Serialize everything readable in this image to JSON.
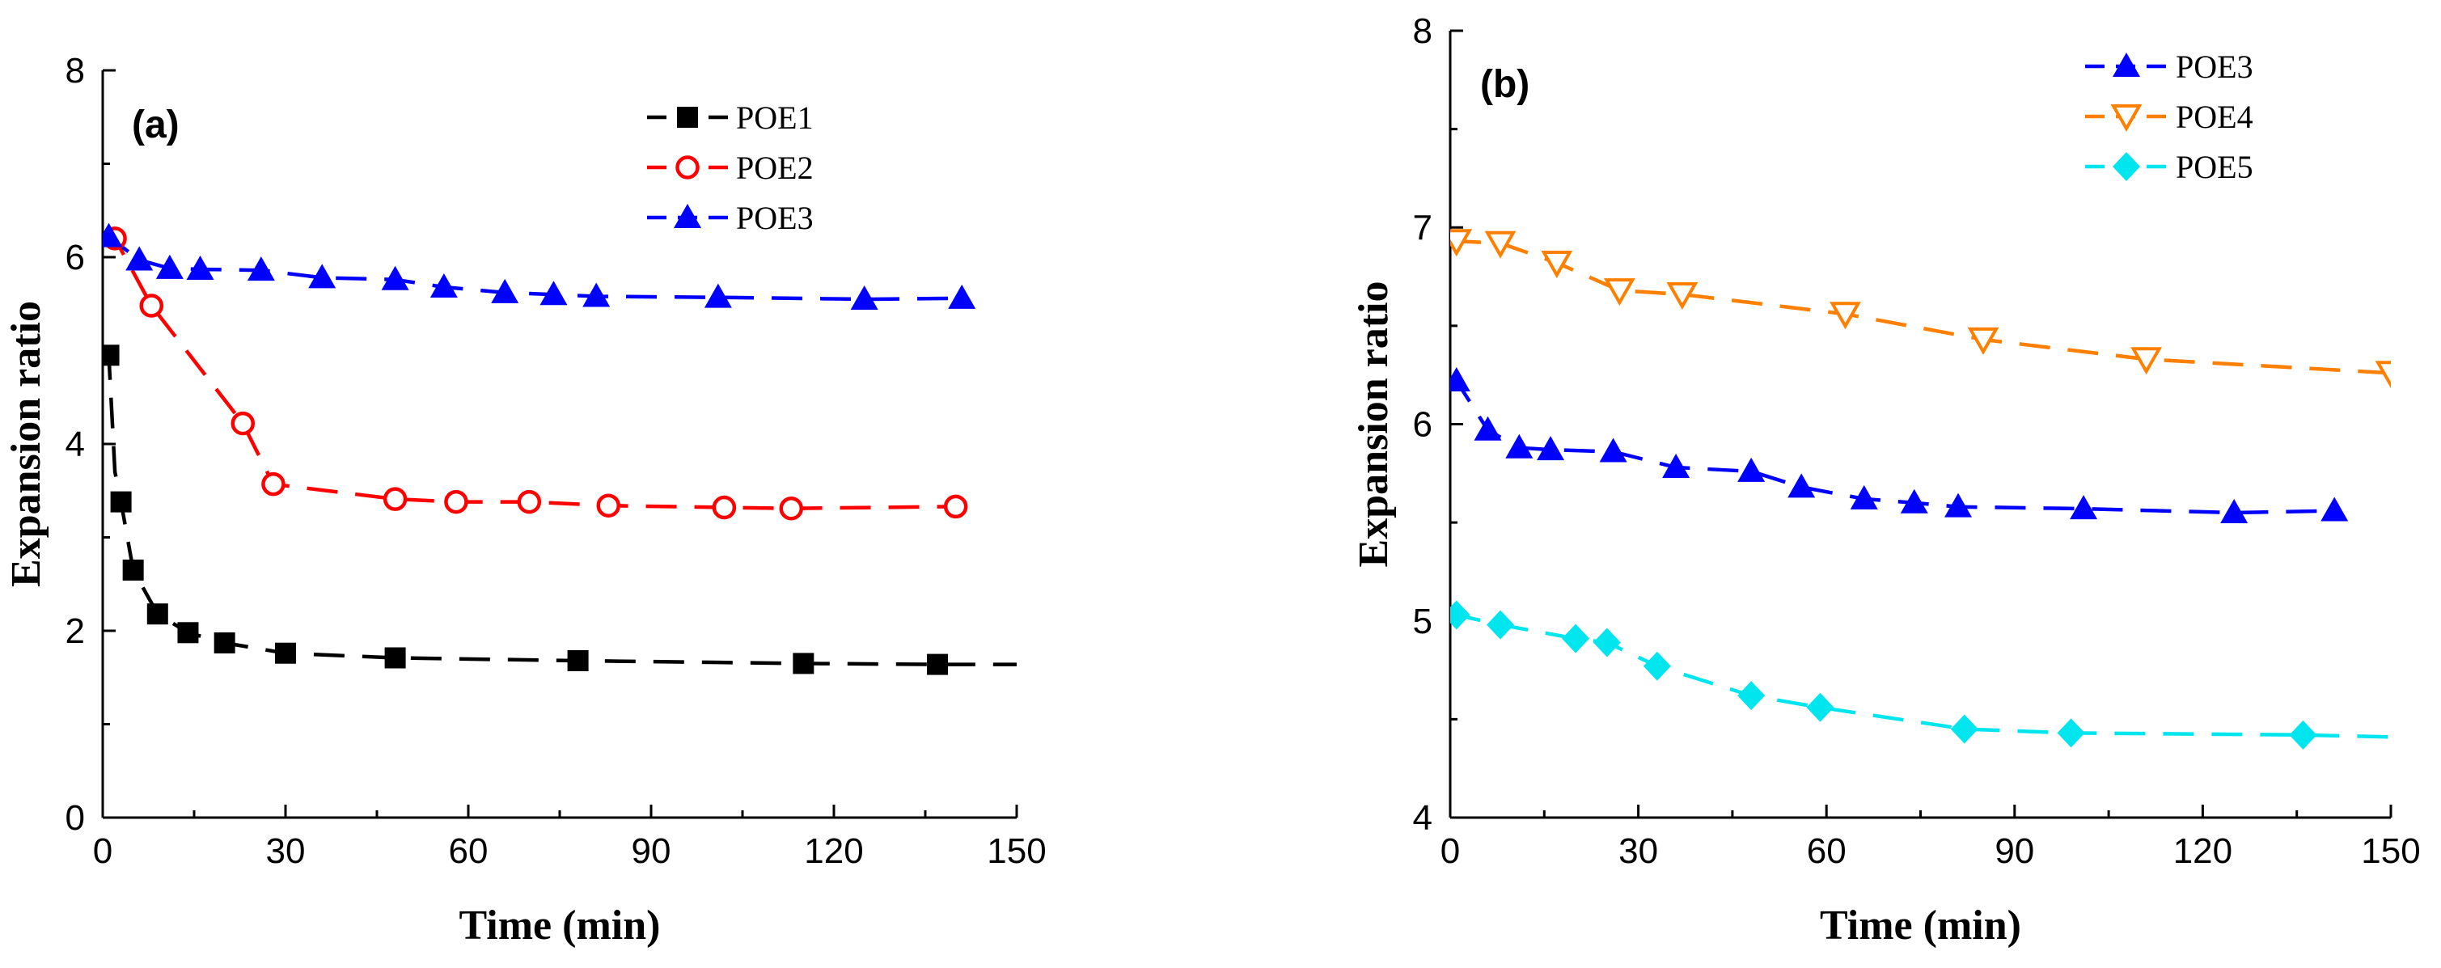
{
  "figure": {
    "panel_a": {
      "label": "(a)"
    },
    "panel_b": {
      "label": "(b)"
    }
  },
  "chart_data": [
    {
      "id": "a",
      "type": "line",
      "panel_label": "(a)",
      "xlabel": "Time (min)",
      "ylabel": "Expansion ratio",
      "xlim": [
        0,
        150
      ],
      "ylim": [
        0,
        8
      ],
      "xticks": [
        0,
        30,
        60,
        90,
        120,
        150
      ],
      "yticks": [
        0,
        2,
        4,
        6,
        8
      ],
      "legend_position": "top-right",
      "series": [
        {
          "name": "POE1",
          "color": "#000000",
          "marker": "square-filled",
          "x": [
            1,
            3,
            5,
            9,
            14,
            20,
            30,
            48,
            78,
            115,
            137
          ],
          "y": [
            4.95,
            3.38,
            2.65,
            2.18,
            1.98,
            1.87,
            1.76,
            1.71,
            1.68,
            1.65,
            1.64
          ],
          "line_x": [
            0,
            1,
            2,
            3,
            5,
            9,
            14,
            20,
            30,
            48,
            78,
            115,
            137,
            150
          ],
          "line_y": [
            4.95,
            4.95,
            3.7,
            3.38,
            2.65,
            2.18,
            1.98,
            1.87,
            1.76,
            1.71,
            1.68,
            1.65,
            1.64,
            1.64
          ]
        },
        {
          "name": "POE2",
          "color": "#ff0000",
          "marker": "circle-open",
          "x": [
            2,
            8,
            23,
            28,
            48,
            58,
            70,
            83,
            102,
            113,
            140
          ],
          "y": [
            6.2,
            5.48,
            4.22,
            3.57,
            3.41,
            3.38,
            3.38,
            3.34,
            3.32,
            3.31,
            3.33
          ],
          "line_x": [
            0,
            2,
            8,
            23,
            28,
            48,
            58,
            70,
            83,
            102,
            113,
            140
          ],
          "line_y": [
            6.2,
            6.2,
            5.48,
            4.22,
            3.57,
            3.41,
            3.38,
            3.38,
            3.34,
            3.32,
            3.31,
            3.33
          ]
        },
        {
          "name": "POE3",
          "color": "#0000ff",
          "marker": "triangle-up-filled",
          "x": [
            1,
            6,
            11,
            16,
            26,
            36,
            48,
            56,
            66,
            74,
            81,
            101,
            125,
            141
          ],
          "y": [
            6.22,
            5.97,
            5.88,
            5.87,
            5.86,
            5.78,
            5.76,
            5.68,
            5.62,
            5.6,
            5.58,
            5.57,
            5.55,
            5.56
          ],
          "line_x": [
            0,
            1,
            6,
            11,
            16,
            26,
            36,
            48,
            56,
            66,
            74,
            81,
            101,
            125,
            141
          ],
          "line_y": [
            6.22,
            6.22,
            5.97,
            5.88,
            5.87,
            5.86,
            5.78,
            5.76,
            5.68,
            5.62,
            5.6,
            5.58,
            5.57,
            5.55,
            5.56
          ]
        }
      ]
    },
    {
      "id": "b",
      "type": "line",
      "panel_label": "(b)",
      "xlabel": "Time (min)",
      "ylabel": "Expansion ratio",
      "xlim": [
        0,
        150
      ],
      "ylim": [
        4,
        8
      ],
      "xticks": [
        0,
        30,
        60,
        90,
        120,
        150
      ],
      "yticks": [
        4,
        5,
        6,
        7,
        8
      ],
      "legend_position": "top-right",
      "series": [
        {
          "name": "POE3",
          "color": "#0000ff",
          "marker": "triangle-up-filled",
          "x": [
            1,
            6,
            11,
            16,
            26,
            36,
            48,
            56,
            66,
            74,
            81,
            101,
            125,
            141
          ],
          "y": [
            6.22,
            5.97,
            5.88,
            5.87,
            5.86,
            5.78,
            5.76,
            5.68,
            5.62,
            5.6,
            5.58,
            5.57,
            5.55,
            5.56
          ],
          "line_x": [
            0,
            1,
            6,
            11,
            16,
            26,
            36,
            48,
            56,
            66,
            74,
            81,
            101,
            125,
            141
          ],
          "line_y": [
            6.22,
            6.22,
            5.97,
            5.88,
            5.87,
            5.86,
            5.78,
            5.76,
            5.68,
            5.62,
            5.6,
            5.58,
            5.57,
            5.55,
            5.56
          ]
        },
        {
          "name": "POE4",
          "color": "#ff8000",
          "marker": "triangle-down-open",
          "x": [
            1,
            8,
            17,
            27,
            37,
            63,
            85,
            111,
            150
          ],
          "y": [
            6.93,
            6.92,
            6.82,
            6.68,
            6.66,
            6.56,
            6.43,
            6.33,
            6.26
          ],
          "line_x": [
            0,
            1,
            8,
            17,
            27,
            37,
            63,
            85,
            111,
            150
          ],
          "line_y": [
            6.93,
            6.93,
            6.92,
            6.82,
            6.68,
            6.66,
            6.56,
            6.43,
            6.33,
            6.26
          ]
        },
        {
          "name": "POE5",
          "color": "#00e5ee",
          "marker": "diamond-filled",
          "x": [
            1,
            8,
            20,
            25,
            33,
            48,
            59,
            82,
            99,
            136
          ],
          "y": [
            5.03,
            4.98,
            4.91,
            4.89,
            4.77,
            4.62,
            4.56,
            4.45,
            4.43,
            4.42
          ],
          "line_x": [
            0,
            1,
            8,
            20,
            25,
            33,
            48,
            59,
            82,
            99,
            136,
            150
          ],
          "line_y": [
            5.03,
            5.03,
            4.98,
            4.91,
            4.89,
            4.77,
            4.62,
            4.56,
            4.45,
            4.43,
            4.42,
            4.41
          ]
        }
      ]
    }
  ]
}
